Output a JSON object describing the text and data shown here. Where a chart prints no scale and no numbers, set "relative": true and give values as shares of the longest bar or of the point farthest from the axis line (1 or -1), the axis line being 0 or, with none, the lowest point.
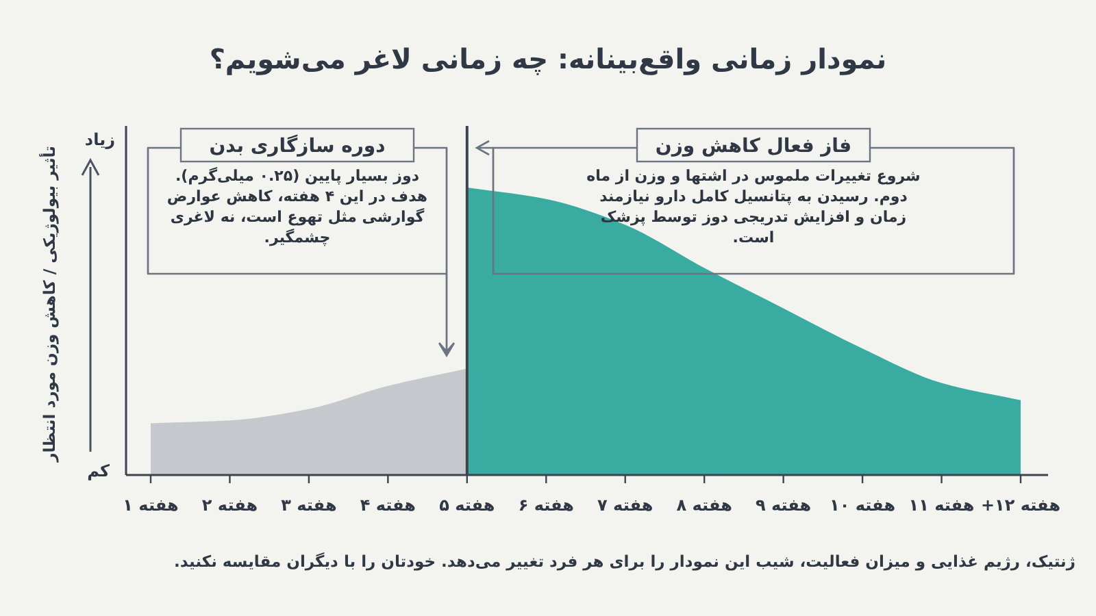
{
  "chart_data": {
    "type": "area",
    "relative": true,
    "title": "نمودار زمانی واقع‌بینانه: چه زمانی لاغر می‌شویم؟",
    "ylabel": "تأثیر بیولوژیکی / کاهش وزن مورد انتظار",
    "categories": [
      "هفته ۱",
      "هفته ۲",
      "هفته ۳",
      "هفته ۴",
      "هفته ۵",
      "هفته ۶",
      "هفته ۷",
      "هفته ۸",
      "هفته ۹",
      "هفته ۱۰",
      "هفته ۱۱",
      "هفته ۱۲+"
    ],
    "series": [
      {
        "color": "#c5c8cd",
        "values": [
          0.18,
          0.19,
          0.23,
          0.31,
          0.37,
          null,
          null,
          null,
          null,
          null,
          null,
          null
        ]
      },
      {
        "color": "#3aaba1",
        "values": [
          null,
          null,
          null,
          null,
          1.0,
          0.96,
          0.87,
          0.72,
          0.58,
          0.44,
          0.32,
          0.26
        ]
      }
    ],
    "ref_lines": [
      {
        "axis": "x",
        "value": "هفته ۵",
        "color": "#3d4450"
      }
    ],
    "annotations": [
      "زیاد",
      "کم",
      "دوره سازگاری بدن",
      "دوز بسیار پایین (۰.۲۵ میلی‌گرم). هدف در این ۴ هفته، کاهش عوارض گوارشی مثل تهوع است، نه لاغری چشمگیر.",
      "فاز فعال کاهش وزن",
      "شروع تغییرات ملموس در اشتها و وزن از ماه دوم. رسیدن به پتانسیل کامل دارو نیازمند زمان و افزایش تدریجی دوز توسط پزشک است.",
      "ژنتیک، رژیم غذایی و میزان فعالیت، شیب این نمودار را برای هر فرد تغییر می‌دهد. خودتان را با دیگران مقایسه نکنید."
    ]
  }
}
